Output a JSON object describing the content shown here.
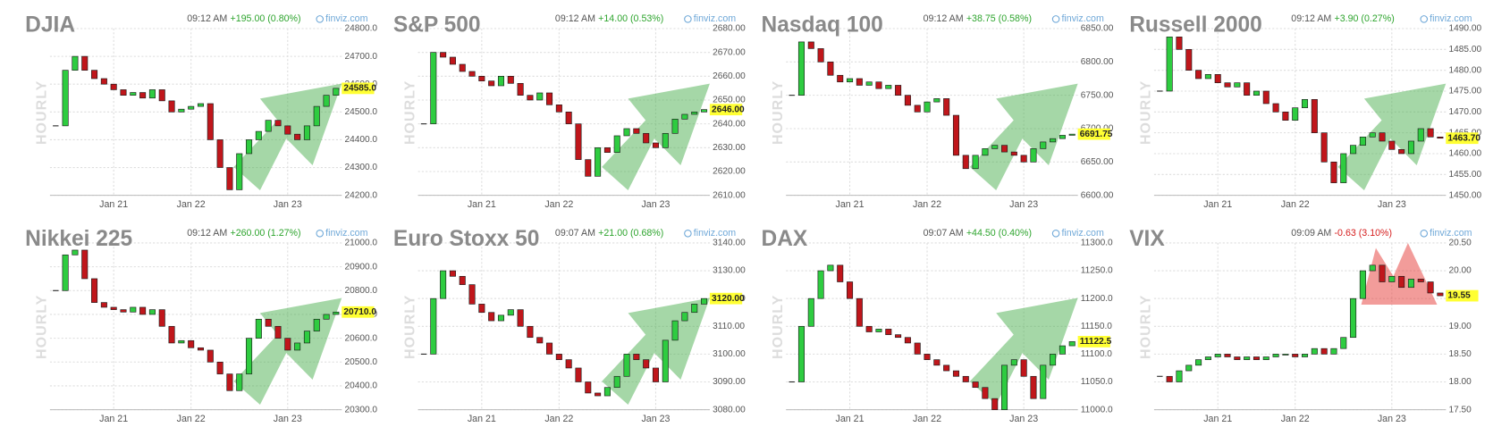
{
  "chart_data": [
    {
      "type": "candlestick",
      "title": "DJIA",
      "timeframe": "HOURLY",
      "time": "09:12 AM",
      "change": "+195.00 (0.80%)",
      "change_color": "#2fa52f",
      "source": "finviz.com",
      "values": [
        24450,
        24650,
        24700,
        24650,
        24620,
        24600,
        24580,
        24560,
        24570,
        24550,
        24580,
        24540,
        24500,
        24510,
        24520,
        24530,
        24400,
        24300,
        24220,
        24350,
        24400,
        24430,
        24470,
        24450,
        24420,
        24400,
        24450,
        24520,
        24560,
        24585
      ],
      "last": {
        "value": 24585,
        "label": "24585.0"
      },
      "xlim": [
        0,
        29
      ],
      "xticks": [
        {
          "value": 6,
          "label": "Jan 21"
        },
        {
          "value": 14,
          "label": "Jan 22"
        },
        {
          "value": 24,
          "label": "Jan 23"
        }
      ],
      "ylim": [
        24200,
        24800
      ],
      "yticks": [
        {
          "value": 24200,
          "label": "24200.0"
        },
        {
          "value": 24300,
          "label": "24300.0"
        },
        {
          "value": 24400,
          "label": "24400.0"
        },
        {
          "value": 24500,
          "label": "24500.0"
        },
        {
          "value": 24600,
          "label": "24600.0"
        },
        {
          "value": 24700,
          "label": "24700.0"
        },
        {
          "value": 24800,
          "label": "24800.0"
        }
      ],
      "arrow": {
        "direction": "up",
        "color": "#4caf50"
      }
    },
    {
      "type": "candlestick",
      "title": "S&P 500",
      "timeframe": "HOURLY",
      "time": "09:12 AM",
      "change": "+14.00 (0.53%)",
      "change_color": "#2fa52f",
      "source": "finviz.com",
      "values": [
        2640,
        2670,
        2668,
        2665,
        2662,
        2660,
        2658,
        2656,
        2660,
        2657,
        2652,
        2650,
        2653,
        2648,
        2645,
        2640,
        2625,
        2618,
        2630,
        2628,
        2635,
        2638,
        2636,
        2632,
        2630,
        2636,
        2642,
        2644,
        2645,
        2646
      ],
      "last": {
        "value": 2646,
        "label": "2646.00"
      },
      "xlim": [
        0,
        29
      ],
      "xticks": [
        {
          "value": 6,
          "label": "Jan 21"
        },
        {
          "value": 14,
          "label": "Jan 22"
        },
        {
          "value": 24,
          "label": "Jan 23"
        }
      ],
      "ylim": [
        2610,
        2680
      ],
      "yticks": [
        {
          "value": 2610,
          "label": "2610.00"
        },
        {
          "value": 2620,
          "label": "2620.00"
        },
        {
          "value": 2630,
          "label": "2630.00"
        },
        {
          "value": 2640,
          "label": "2640.00"
        },
        {
          "value": 2650,
          "label": "2650.00"
        },
        {
          "value": 2660,
          "label": "2660.00"
        },
        {
          "value": 2670,
          "label": "2670.00"
        },
        {
          "value": 2680,
          "label": "2680.00"
        }
      ],
      "arrow": {
        "direction": "up",
        "color": "#4caf50"
      }
    },
    {
      "type": "candlestick",
      "title": "Nasdaq 100",
      "timeframe": "HOURLY",
      "time": "09:12 AM",
      "change": "+38.75 (0.58%)",
      "change_color": "#2fa52f",
      "source": "finviz.com",
      "values": [
        6750,
        6830,
        6820,
        6800,
        6780,
        6770,
        6775,
        6765,
        6770,
        6760,
        6765,
        6750,
        6735,
        6725,
        6740,
        6745,
        6720,
        6660,
        6640,
        6660,
        6670,
        6675,
        6665,
        6660,
        6650,
        6670,
        6680,
        6685,
        6690,
        6691.75
      ],
      "last": {
        "value": 6691.75,
        "label": "6691.75"
      },
      "xlim": [
        0,
        29
      ],
      "xticks": [
        {
          "value": 6,
          "label": "Jan 21"
        },
        {
          "value": 14,
          "label": "Jan 22"
        },
        {
          "value": 24,
          "label": "Jan 23"
        }
      ],
      "ylim": [
        6600,
        6850
      ],
      "yticks": [
        {
          "value": 6600,
          "label": "6600.00"
        },
        {
          "value": 6650,
          "label": "6650.00"
        },
        {
          "value": 6700,
          "label": "6700.00"
        },
        {
          "value": 6750,
          "label": "6750.00"
        },
        {
          "value": 6800,
          "label": "6800.00"
        },
        {
          "value": 6850,
          "label": "6850.00"
        }
      ],
      "arrow": {
        "direction": "up",
        "color": "#4caf50"
      }
    },
    {
      "type": "candlestick",
      "title": "Russell 2000",
      "timeframe": "HOURLY",
      "time": "09:12 AM",
      "change": "+3.90 (0.27%)",
      "change_color": "#2fa52f",
      "source": "finviz.com",
      "values": [
        1475,
        1488,
        1485,
        1480,
        1478,
        1479,
        1477,
        1476,
        1477,
        1474,
        1475,
        1472,
        1470,
        1468,
        1471,
        1473,
        1465,
        1458,
        1453,
        1460,
        1462,
        1464,
        1465,
        1463,
        1461,
        1460,
        1463,
        1466,
        1464,
        1463.7
      ],
      "last": {
        "value": 1463.7,
        "label": "1463.70"
      },
      "xlim": [
        0,
        29
      ],
      "xticks": [
        {
          "value": 6,
          "label": "Jan 21"
        },
        {
          "value": 14,
          "label": "Jan 22"
        },
        {
          "value": 24,
          "label": "Jan 23"
        }
      ],
      "ylim": [
        1450,
        1490
      ],
      "yticks": [
        {
          "value": 1450,
          "label": "1450.00"
        },
        {
          "value": 1455,
          "label": "1455.00"
        },
        {
          "value": 1460,
          "label": "1460.00"
        },
        {
          "value": 1465,
          "label": "1465.00"
        },
        {
          "value": 1470,
          "label": "1470.00"
        },
        {
          "value": 1475,
          "label": "1475.00"
        },
        {
          "value": 1480,
          "label": "1480.00"
        },
        {
          "value": 1485,
          "label": "1485.00"
        },
        {
          "value": 1490,
          "label": "1490.00"
        }
      ],
      "arrow": {
        "direction": "up",
        "color": "#4caf50"
      }
    },
    {
      "type": "candlestick",
      "title": "Nikkei 225",
      "timeframe": "HOURLY",
      "time": "09:12 AM",
      "change": "+260.00 (1.27%)",
      "change_color": "#2fa52f",
      "source": "finviz.com",
      "values": [
        20800,
        20950,
        20970,
        20850,
        20750,
        20730,
        20720,
        20710,
        20730,
        20700,
        20720,
        20650,
        20580,
        20590,
        20560,
        20550,
        20500,
        20450,
        20380,
        20450,
        20600,
        20680,
        20650,
        20600,
        20550,
        20580,
        20630,
        20680,
        20700,
        20710
      ],
      "last": {
        "value": 20710,
        "label": "20710.0"
      },
      "xlim": [
        0,
        29
      ],
      "xticks": [
        {
          "value": 6,
          "label": "Jan 21"
        },
        {
          "value": 14,
          "label": "Jan 22"
        },
        {
          "value": 24,
          "label": "Jan 23"
        }
      ],
      "ylim": [
        20300,
        21000
      ],
      "yticks": [
        {
          "value": 20300,
          "label": "20300.0"
        },
        {
          "value": 20400,
          "label": "20400.0"
        },
        {
          "value": 20500,
          "label": "20500.0"
        },
        {
          "value": 20600,
          "label": "20600.0"
        },
        {
          "value": 20700,
          "label": "20700.0"
        },
        {
          "value": 20800,
          "label": "20800.0"
        },
        {
          "value": 20900,
          "label": "20900.0"
        },
        {
          "value": 21000,
          "label": "21000.0"
        }
      ],
      "arrow": {
        "direction": "up",
        "color": "#4caf50"
      }
    },
    {
      "type": "candlestick",
      "title": "Euro Stoxx 50",
      "timeframe": "HOURLY",
      "time": "09:07 AM",
      "change": "+21.00 (0.68%)",
      "change_color": "#2fa52f",
      "source": "finviz.com",
      "values": [
        3100,
        3120,
        3130,
        3128,
        3125,
        3118,
        3115,
        3112,
        3114,
        3116,
        3110,
        3106,
        3104,
        3100,
        3098,
        3095,
        3090,
        3086,
        3085,
        3088,
        3092,
        3100,
        3098,
        3095,
        3090,
        3105,
        3112,
        3115,
        3118,
        3120
      ],
      "last": {
        "value": 3120,
        "label": "3120.00"
      },
      "xlim": [
        0,
        29
      ],
      "xticks": [
        {
          "value": 6,
          "label": "Jan 21"
        },
        {
          "value": 14,
          "label": "Jan 22"
        },
        {
          "value": 24,
          "label": "Jan 23"
        }
      ],
      "ylim": [
        3080,
        3140
      ],
      "yticks": [
        {
          "value": 3080,
          "label": "3080.00"
        },
        {
          "value": 3090,
          "label": "3090.00"
        },
        {
          "value": 3100,
          "label": "3100.00"
        },
        {
          "value": 3110,
          "label": "3110.00"
        },
        {
          "value": 3120,
          "label": "3120.00"
        },
        {
          "value": 3130,
          "label": "3130.00"
        },
        {
          "value": 3140,
          "label": "3140.00"
        }
      ],
      "arrow": {
        "direction": "up",
        "color": "#4caf50"
      }
    },
    {
      "type": "candlestick",
      "title": "DAX",
      "timeframe": "HOURLY",
      "time": "09:07 AM",
      "change": "+44.50 (0.40%)",
      "change_color": "#2fa52f",
      "source": "finviz.com",
      "values": [
        11050,
        11150,
        11200,
        11250,
        11260,
        11230,
        11200,
        11150,
        11140,
        11145,
        11135,
        11130,
        11120,
        11100,
        11090,
        11080,
        11070,
        11060,
        11050,
        11040,
        11020,
        11000,
        11080,
        11090,
        11060,
        11020,
        11080,
        11100,
        11115,
        11122.5
      ],
      "last": {
        "value": 11122.5,
        "label": "11122.5"
      },
      "xlim": [
        0,
        29
      ],
      "xticks": [
        {
          "value": 6,
          "label": "Jan 21"
        },
        {
          "value": 14,
          "label": "Jan 22"
        },
        {
          "value": 24,
          "label": "Jan 23"
        }
      ],
      "ylim": [
        11000,
        11300
      ],
      "yticks": [
        {
          "value": 11000,
          "label": "11000.0"
        },
        {
          "value": 11050,
          "label": "11050.0"
        },
        {
          "value": 11100,
          "label": "11100.0"
        },
        {
          "value": 11150,
          "label": "11150.0"
        },
        {
          "value": 11200,
          "label": "11200.0"
        },
        {
          "value": 11250,
          "label": "11250.0"
        },
        {
          "value": 11300,
          "label": "11300.0"
        }
      ],
      "arrow": {
        "direction": "up",
        "color": "#4caf50"
      }
    },
    {
      "type": "candlestick",
      "title": "VIX",
      "timeframe": "HOURLY",
      "time": "09:09 AM",
      "change": "-0.63 (3.10%)",
      "change_color": "#d62020",
      "source": "finviz.com",
      "values": [
        18.1,
        18.0,
        18.2,
        18.3,
        18.4,
        18.45,
        18.5,
        18.45,
        18.4,
        18.45,
        18.4,
        18.45,
        18.5,
        18.5,
        18.45,
        18.5,
        18.6,
        18.5,
        18.6,
        18.8,
        19.5,
        20.0,
        20.1,
        19.8,
        19.9,
        19.7,
        19.85,
        19.8,
        19.6,
        19.55
      ],
      "last": {
        "value": 19.55,
        "label": "19.55"
      },
      "xlim": [
        0,
        29
      ],
      "xticks": [
        {
          "value": 6,
          "label": "Jan 21"
        },
        {
          "value": 14,
          "label": "Jan 22"
        },
        {
          "value": 24,
          "label": "Jan 23"
        }
      ],
      "ylim": [
        17.5,
        20.5
      ],
      "yticks": [
        {
          "value": 17.5,
          "label": "17.50"
        },
        {
          "value": 18,
          "label": "18.00"
        },
        {
          "value": 18.5,
          "label": "18.50"
        },
        {
          "value": 19,
          "label": "19.00"
        },
        {
          "value": 19.5,
          "label": "19.50"
        },
        {
          "value": 20,
          "label": "20.00"
        },
        {
          "value": 20.5,
          "label": "20.50"
        }
      ],
      "arrow": {
        "direction": "down",
        "color": "#e53935"
      }
    }
  ]
}
